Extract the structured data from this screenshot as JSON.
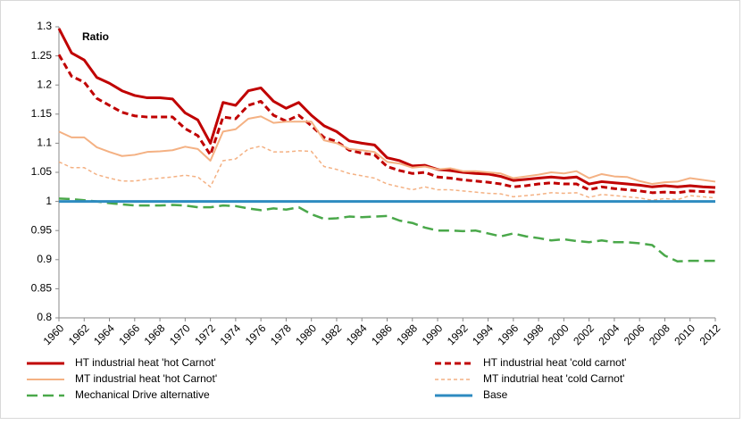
{
  "chart_data": {
    "type": "line",
    "annotation": "Ratio",
    "x": [
      1960,
      1961,
      1962,
      1963,
      1964,
      1965,
      1966,
      1967,
      1968,
      1969,
      1970,
      1971,
      1972,
      1973,
      1974,
      1975,
      1976,
      1977,
      1978,
      1979,
      1980,
      1981,
      1982,
      1983,
      1984,
      1985,
      1986,
      1987,
      1988,
      1989,
      1990,
      1991,
      1992,
      1993,
      1994,
      1995,
      1996,
      1997,
      1998,
      1999,
      2000,
      2001,
      2002,
      2003,
      2004,
      2005,
      2006,
      2007,
      2008,
      2009,
      2010,
      2011,
      2012
    ],
    "xlim": [
      1960,
      2012
    ],
    "xticks": [
      1960,
      1962,
      1964,
      1966,
      1968,
      1970,
      1972,
      1974,
      1976,
      1978,
      1980,
      1982,
      1984,
      1986,
      1988,
      1990,
      1992,
      1994,
      1996,
      1998,
      2000,
      2002,
      2004,
      2006,
      2008,
      2010,
      2012
    ],
    "ylim": [
      0.8,
      1.3
    ],
    "yticks": [
      0.8,
      0.85,
      0.9,
      0.95,
      1,
      1.05,
      1.1,
      1.15,
      1.2,
      1.25,
      1.3
    ],
    "grid": false,
    "series": [
      {
        "name": "HT industrial heat 'hot Carnot'",
        "color": "#c00000",
        "style": "solid-thick",
        "values": [
          1.297,
          1.255,
          1.243,
          1.213,
          1.203,
          1.19,
          1.182,
          1.178,
          1.178,
          1.176,
          1.152,
          1.14,
          1.1,
          1.17,
          1.165,
          1.19,
          1.195,
          1.172,
          1.16,
          1.17,
          1.148,
          1.13,
          1.12,
          1.104,
          1.1,
          1.097,
          1.075,
          1.07,
          1.061,
          1.062,
          1.055,
          1.053,
          1.05,
          1.048,
          1.047,
          1.043,
          1.036,
          1.038,
          1.04,
          1.042,
          1.04,
          1.042,
          1.03,
          1.034,
          1.032,
          1.03,
          1.028,
          1.025,
          1.027,
          1.025,
          1.027,
          1.025,
          1.024
        ]
      },
      {
        "name": "HT industrial heat 'cold carnot'",
        "color": "#c00000",
        "style": "dashed-thick",
        "values": [
          1.252,
          1.215,
          1.205,
          1.177,
          1.165,
          1.153,
          1.147,
          1.145,
          1.145,
          1.145,
          1.125,
          1.113,
          1.08,
          1.145,
          1.142,
          1.165,
          1.172,
          1.148,
          1.138,
          1.148,
          1.13,
          1.11,
          1.103,
          1.088,
          1.083,
          1.08,
          1.06,
          1.053,
          1.048,
          1.05,
          1.042,
          1.04,
          1.037,
          1.035,
          1.033,
          1.03,
          1.025,
          1.027,
          1.03,
          1.032,
          1.03,
          1.03,
          1.02,
          1.025,
          1.022,
          1.02,
          1.018,
          1.015,
          1.016,
          1.015,
          1.018,
          1.017,
          1.016
        ]
      },
      {
        "name": "MT industrial heat 'hot Carnot'",
        "color": "#f4b183",
        "style": "solid",
        "values": [
          1.12,
          1.11,
          1.11,
          1.093,
          1.085,
          1.078,
          1.08,
          1.085,
          1.086,
          1.088,
          1.094,
          1.09,
          1.07,
          1.12,
          1.124,
          1.142,
          1.146,
          1.135,
          1.137,
          1.137,
          1.137,
          1.105,
          1.1,
          1.09,
          1.088,
          1.085,
          1.068,
          1.065,
          1.058,
          1.06,
          1.055,
          1.057,
          1.052,
          1.052,
          1.05,
          1.048,
          1.04,
          1.043,
          1.046,
          1.05,
          1.048,
          1.052,
          1.04,
          1.047,
          1.043,
          1.042,
          1.035,
          1.03,
          1.033,
          1.034,
          1.04,
          1.037,
          1.034
        ]
      },
      {
        "name": "MT indutrial heat 'cold Carnot'",
        "color": "#f4b183",
        "style": "dashed-thin",
        "values": [
          1.068,
          1.058,
          1.058,
          1.046,
          1.04,
          1.035,
          1.035,
          1.038,
          1.04,
          1.042,
          1.045,
          1.042,
          1.025,
          1.07,
          1.073,
          1.09,
          1.095,
          1.085,
          1.085,
          1.087,
          1.086,
          1.06,
          1.055,
          1.048,
          1.044,
          1.04,
          1.03,
          1.025,
          1.02,
          1.025,
          1.02,
          1.02,
          1.018,
          1.016,
          1.014,
          1.013,
          1.008,
          1.01,
          1.012,
          1.015,
          1.014,
          1.015,
          1.007,
          1.012,
          1.01,
          1.008,
          1.006,
          1.002,
          1.005,
          1.003,
          1.01,
          1.008,
          1.006
        ]
      },
      {
        "name": "Mechanical Drive alternative",
        "color": "#4aa84a",
        "style": "long-dashed",
        "values": [
          1.005,
          1.004,
          1.002,
          1.0,
          0.997,
          0.995,
          0.993,
          0.993,
          0.993,
          0.994,
          0.993,
          0.99,
          0.99,
          0.993,
          0.992,
          0.988,
          0.985,
          0.988,
          0.986,
          0.99,
          0.978,
          0.97,
          0.971,
          0.974,
          0.973,
          0.974,
          0.975,
          0.967,
          0.963,
          0.955,
          0.95,
          0.95,
          0.949,
          0.95,
          0.945,
          0.94,
          0.945,
          0.94,
          0.937,
          0.933,
          0.935,
          0.932,
          0.93,
          0.933,
          0.93,
          0.93,
          0.928,
          0.925,
          0.907,
          0.897,
          0.898,
          0.898,
          0.898
        ]
      },
      {
        "name": "Base",
        "color": "#2e8bc0",
        "style": "solid-thick",
        "values": [
          1,
          1,
          1,
          1,
          1,
          1,
          1,
          1,
          1,
          1,
          1,
          1,
          1,
          1,
          1,
          1,
          1,
          1,
          1,
          1,
          1,
          1,
          1,
          1,
          1,
          1,
          1,
          1,
          1,
          1,
          1,
          1,
          1,
          1,
          1,
          1,
          1,
          1,
          1,
          1,
          1,
          1,
          1,
          1,
          1,
          1,
          1,
          1,
          1,
          1,
          1,
          1,
          1
        ]
      }
    ]
  }
}
